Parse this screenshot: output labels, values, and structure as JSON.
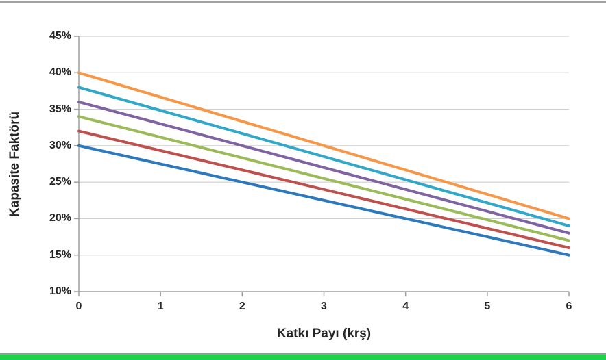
{
  "chart_data": {
    "type": "line",
    "title": "",
    "xlabel": "Katkı Payı (krş)",
    "ylabel": "Kapasite Faktörü",
    "xlim": [
      0,
      6
    ],
    "ylim": [
      10,
      45
    ],
    "xticks": [
      0,
      1,
      2,
      3,
      4,
      5,
      6
    ],
    "xtick_labels": [
      "0",
      "1",
      "2",
      "3",
      "4",
      "5",
      "6"
    ],
    "yticks": [
      10,
      15,
      20,
      25,
      30,
      35,
      40,
      45
    ],
    "ytick_labels": [
      "10%",
      "15%",
      "20%",
      "25%",
      "30%",
      "35%",
      "40%",
      "45%"
    ],
    "grid": "horizontal",
    "legend": "none",
    "x": [
      0,
      6
    ],
    "series": [
      {
        "name": "blue-line",
        "color": "#2D78BE",
        "values": [
          30,
          15
        ]
      },
      {
        "name": "red-line",
        "color": "#C0504D",
        "values": [
          32,
          16
        ]
      },
      {
        "name": "green-line",
        "color": "#9BBB59",
        "values": [
          34,
          17
        ]
      },
      {
        "name": "purple-line",
        "color": "#8064A2",
        "values": [
          36,
          18
        ]
      },
      {
        "name": "cyan-line",
        "color": "#31A8C9",
        "values": [
          38,
          19
        ]
      },
      {
        "name": "orange-line",
        "color": "#F79646",
        "values": [
          40,
          20
        ]
      }
    ],
    "line_width": 4,
    "axis_color": "#9E9E9E",
    "gridline_color": "#C8C8C8",
    "tick_label_color": "#262626"
  },
  "decor": {
    "background": "#FFFFFF",
    "top_line_color": "#A2A2A2",
    "top_line_light_color": "#D8D8D8",
    "bottom_line_color": "#9B9B9B",
    "bottom_bar_color": "#1ED24B"
  }
}
